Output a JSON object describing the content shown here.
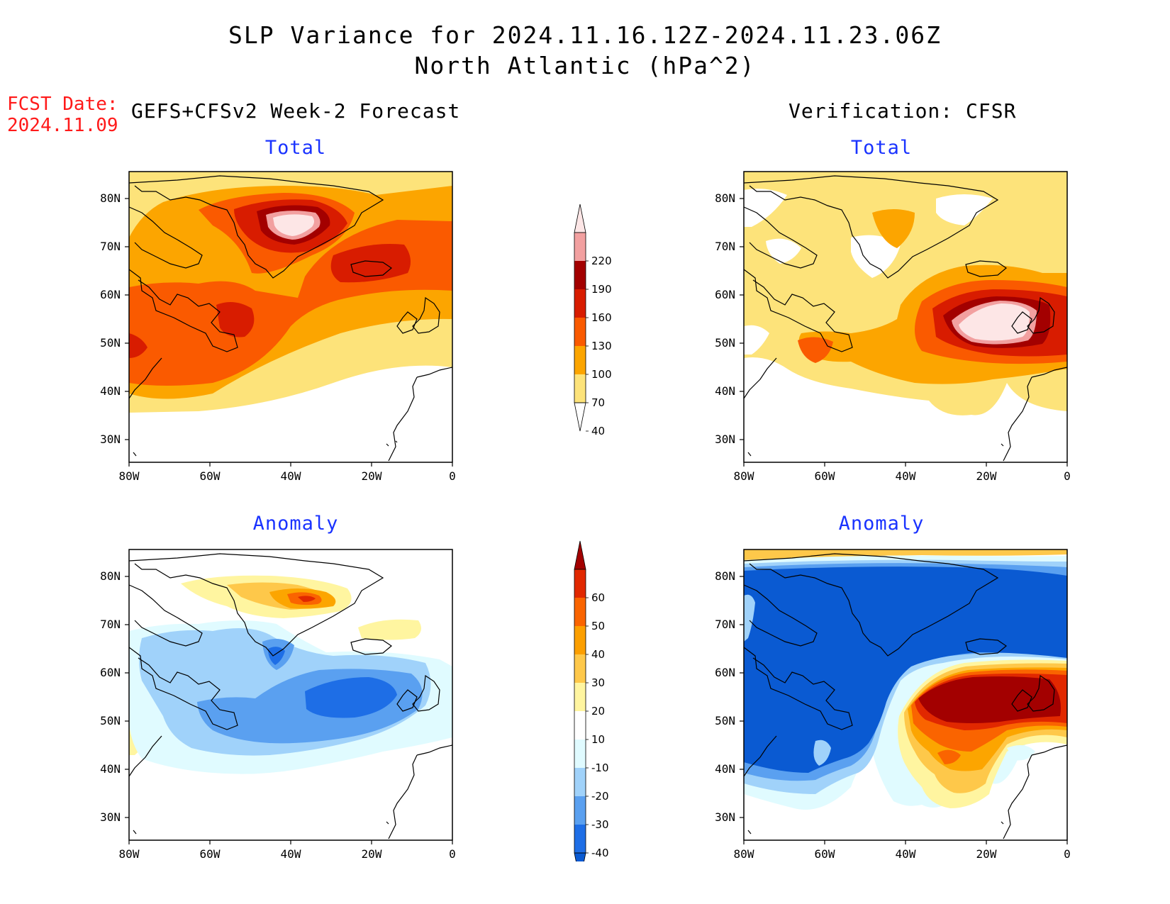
{
  "title": {
    "line1": "SLP Variance for 2024.11.16.12Z-2024.11.23.06Z",
    "line2": "North Atlantic (hPa^2)"
  },
  "fcst": {
    "label": "FCST Date:",
    "date": "2024.11.09"
  },
  "headers": {
    "left": "GEFS+CFSv2 Week-2 Forecast",
    "right": "Verification: CFSR"
  },
  "panels": {
    "top_left": {
      "title": "Total"
    },
    "top_right": {
      "title": "Total"
    },
    "bottom_left": {
      "title": "Anomaly"
    },
    "bottom_right": {
      "title": "Anomaly"
    }
  },
  "axes": {
    "lat_labels": [
      "80N",
      "70N",
      "60N",
      "50N",
      "40N",
      "30N"
    ],
    "lon_labels": [
      "80W",
      "60W",
      "40W",
      "20W",
      "0"
    ]
  },
  "colorbars": {
    "total": {
      "labels": [
        "220",
        "190",
        "160",
        "130",
        "100",
        "70",
        "40"
      ],
      "colors": [
        "#fde6e6",
        "#f2a0a0",
        "#a30000",
        "#d81c00",
        "#fa5a00",
        "#fca500",
        "#fde37a",
        "#ffffff"
      ]
    },
    "anomaly": {
      "labels": [
        "60",
        "50",
        "40",
        "30",
        "20",
        "10",
        "-10",
        "-20",
        "-30",
        "-40"
      ],
      "colors": [
        "#a30000",
        "#e12800",
        "#fa6400",
        "#fc9f00",
        "#fec84a",
        "#fff5a0",
        "#ffffff",
        "#e0fbff",
        "#a0d2fa",
        "#5aa0f0",
        "#1e6ee6",
        "#0a5ad2"
      ]
    }
  },
  "colors": {
    "title_text": "#000000",
    "panel_title": "#1a33ff",
    "fcst_text": "#ff1a1a"
  }
}
